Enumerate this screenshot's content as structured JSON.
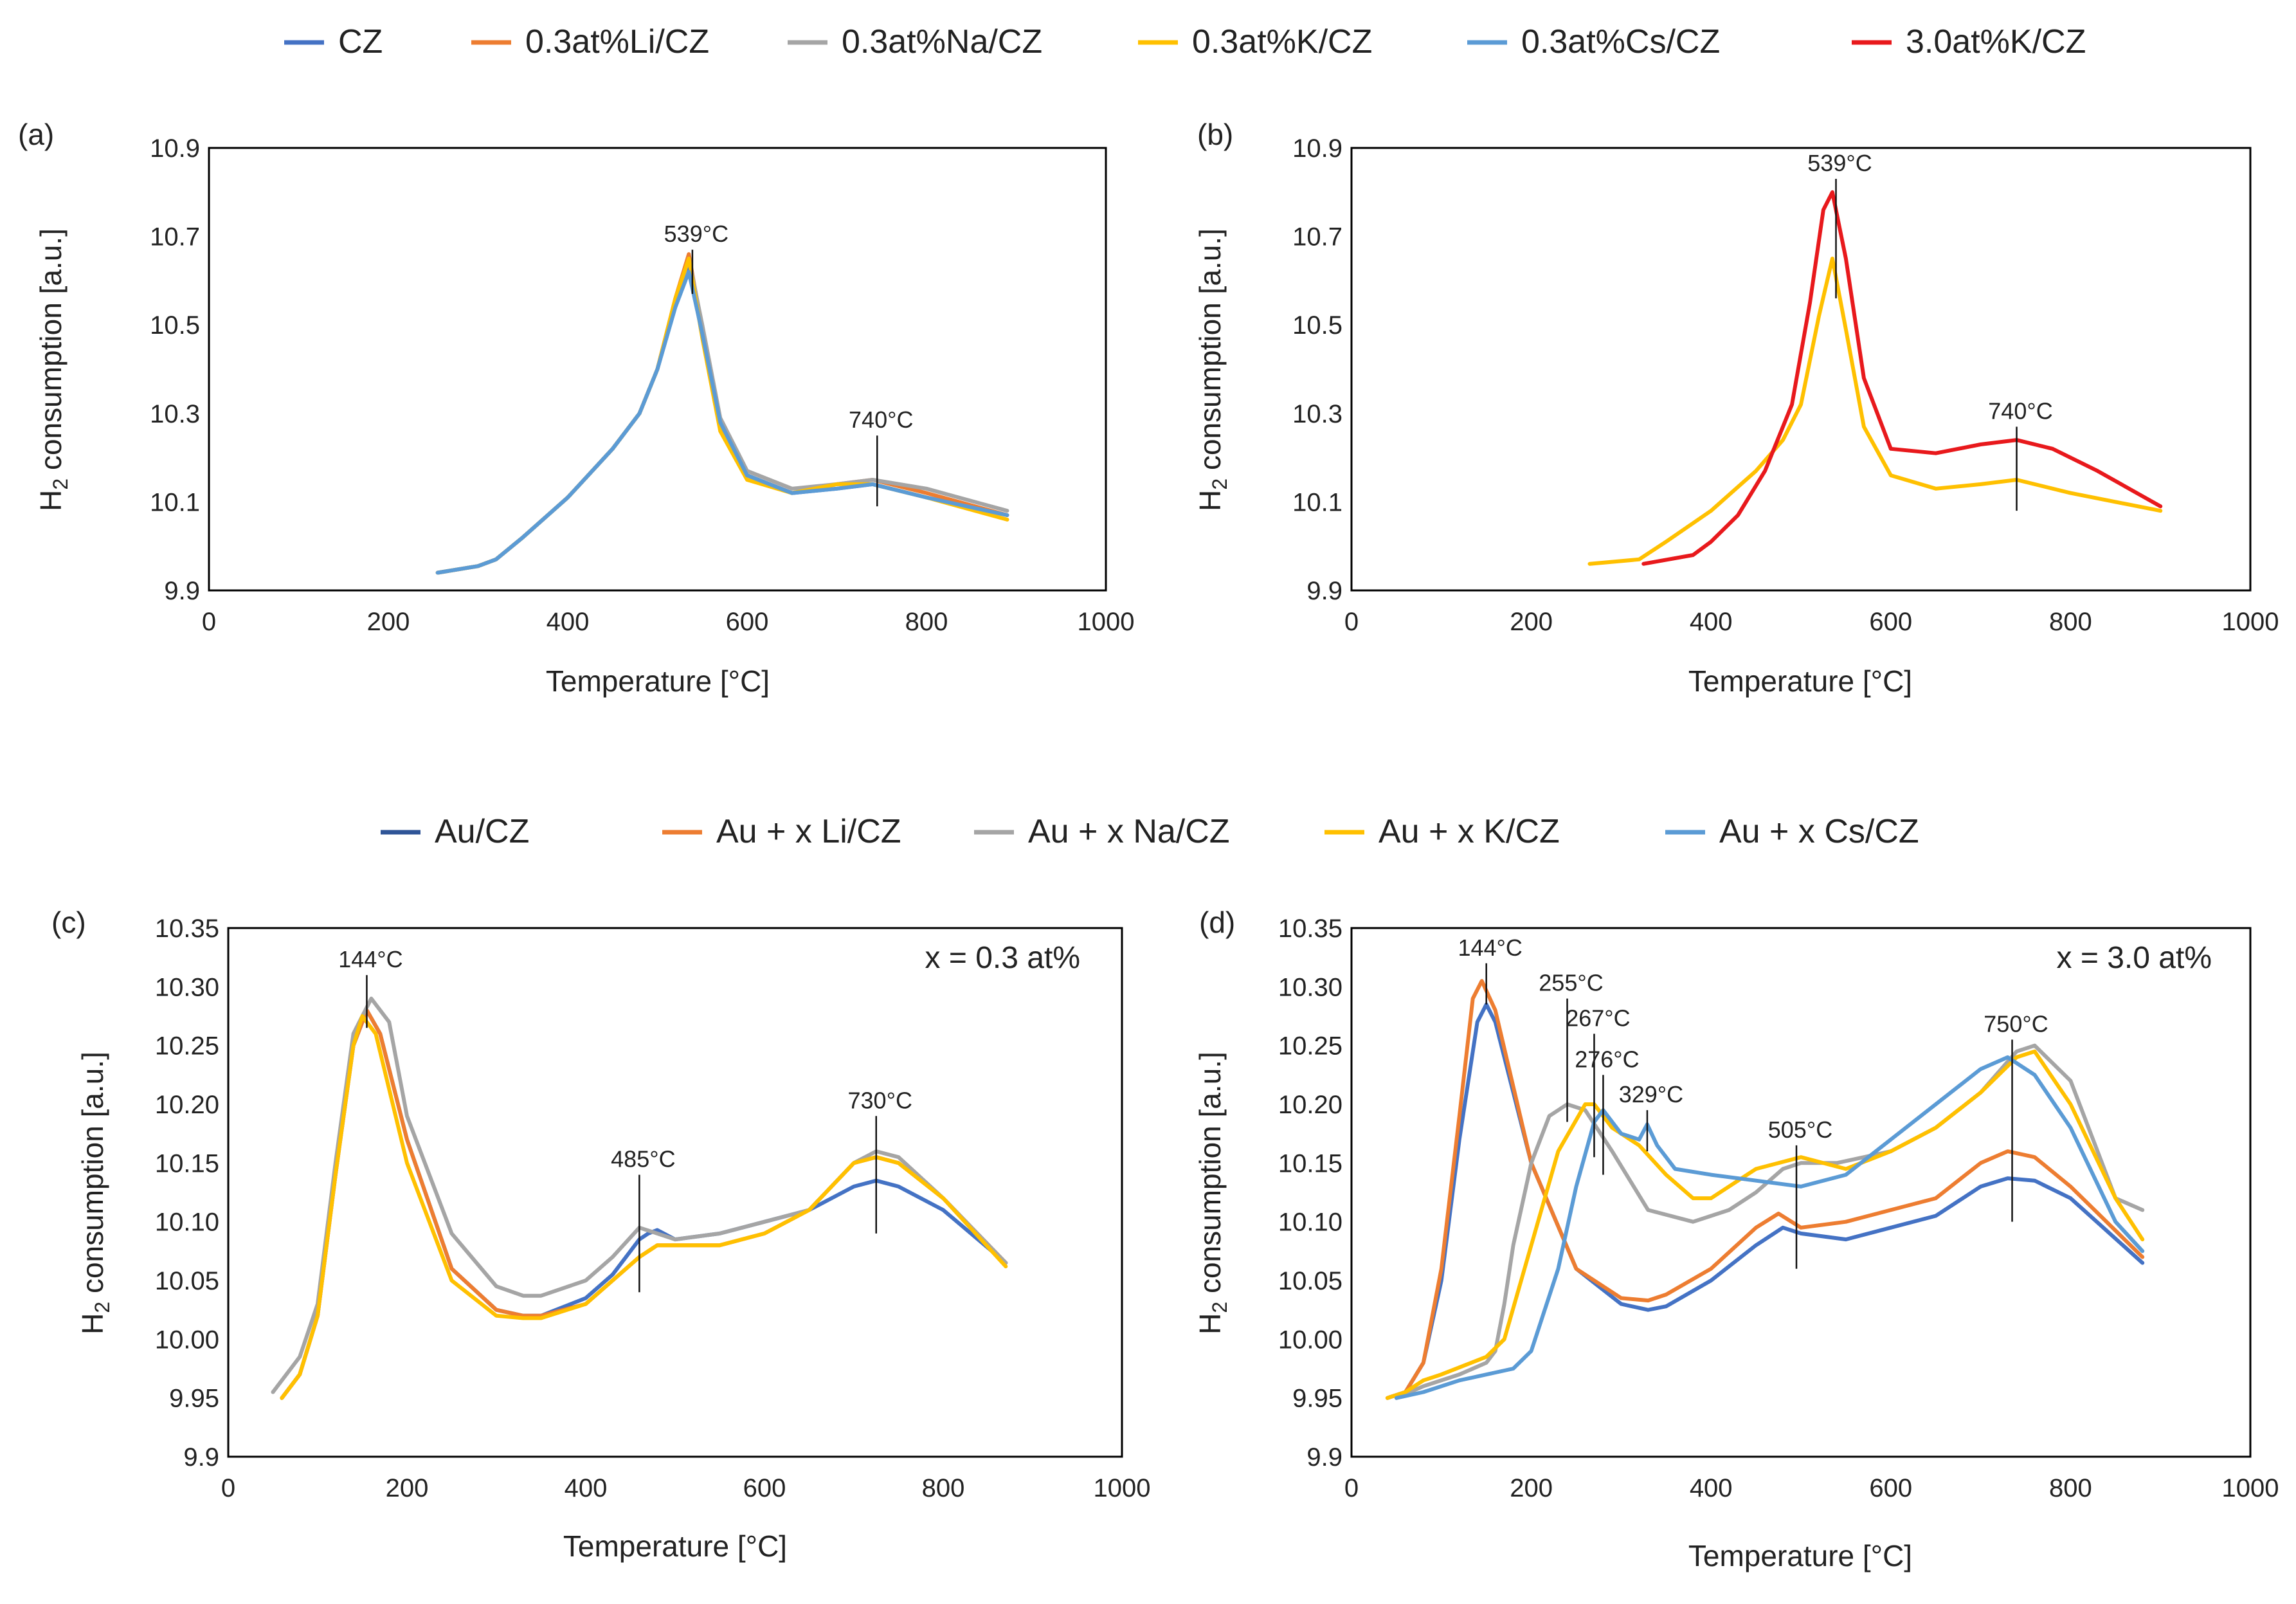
{
  "chart_data": [
    {
      "panel": "(a)",
      "type": "line",
      "xlabel": "Temperature [°C]",
      "ylabel": "H2 consumption [a.u.]",
      "xlim": [
        0,
        1000
      ],
      "ylim": [
        9.9,
        10.9
      ],
      "xticks": [
        0,
        200,
        400,
        600,
        800,
        1000
      ],
      "yticks": [
        "9.9",
        "10.1",
        "10.3",
        "10.5",
        "10.7",
        "10.9"
      ],
      "annotations": [
        {
          "text": "539°C",
          "x": 539,
          "y0": 10.57,
          "y1": 10.67
        },
        {
          "text": "740°C",
          "x": 745,
          "y0": 10.09,
          "y1": 10.25
        }
      ],
      "series": [
        {
          "name": "CZ",
          "color": "#4472c4",
          "x": [
            255,
            300,
            320,
            350,
            400,
            450,
            480,
            500,
            520,
            535,
            550,
            570,
            600,
            650,
            700,
            740,
            800,
            890
          ],
          "y": [
            9.94,
            9.955,
            9.97,
            10.02,
            10.11,
            10.22,
            10.3,
            10.4,
            10.55,
            10.64,
            10.48,
            10.27,
            10.16,
            10.12,
            10.13,
            10.14,
            10.11,
            10.07
          ]
        },
        {
          "name": "0.3at%Li/CZ",
          "color": "#ed7d31",
          "x": [
            255,
            300,
            320,
            350,
            400,
            450,
            480,
            500,
            520,
            535,
            550,
            570,
            600,
            650,
            700,
            740,
            800,
            890
          ],
          "y": [
            9.94,
            9.955,
            9.97,
            10.02,
            10.11,
            10.22,
            10.3,
            10.4,
            10.56,
            10.66,
            10.49,
            10.28,
            10.16,
            10.12,
            10.14,
            10.15,
            10.12,
            10.07
          ]
        },
        {
          "name": "0.3at%Na/CZ",
          "color": "#a5a5a5",
          "x": [
            255,
            300,
            320,
            350,
            400,
            450,
            480,
            500,
            520,
            535,
            550,
            570,
            600,
            650,
            700,
            740,
            800,
            890
          ],
          "y": [
            9.94,
            9.955,
            9.97,
            10.02,
            10.11,
            10.22,
            10.3,
            10.4,
            10.55,
            10.65,
            10.5,
            10.29,
            10.17,
            10.13,
            10.14,
            10.15,
            10.13,
            10.08
          ]
        },
        {
          "name": "0.3at%K/CZ",
          "color": "#ffc000",
          "x": [
            255,
            300,
            320,
            350,
            400,
            450,
            480,
            500,
            520,
            535,
            550,
            570,
            600,
            650,
            700,
            740,
            800,
            890
          ],
          "y": [
            9.94,
            9.955,
            9.97,
            10.02,
            10.11,
            10.22,
            10.3,
            10.4,
            10.56,
            10.65,
            10.47,
            10.26,
            10.15,
            10.12,
            10.14,
            10.14,
            10.11,
            10.06
          ]
        },
        {
          "name": "0.3at%Cs/CZ",
          "color": "#5b9bd5",
          "x": [
            255,
            300,
            320,
            350,
            400,
            450,
            480,
            500,
            520,
            535,
            550,
            570,
            600,
            650,
            700,
            740,
            800,
            890
          ],
          "y": [
            9.94,
            9.955,
            9.97,
            10.02,
            10.11,
            10.22,
            10.3,
            10.4,
            10.54,
            10.62,
            10.48,
            10.28,
            10.16,
            10.12,
            10.13,
            10.14,
            10.11,
            10.07
          ]
        }
      ]
    },
    {
      "panel": "(b)",
      "type": "line",
      "xlabel": "Temperature [°C]",
      "ylabel": "H2 consumption [a.u.]",
      "xlim": [
        0,
        1000
      ],
      "ylim": [
        9.9,
        10.9
      ],
      "xticks": [
        0,
        200,
        400,
        600,
        800,
        1000
      ],
      "yticks": [
        "9.9",
        "10.1",
        "10.3",
        "10.5",
        "10.7",
        "10.9"
      ],
      "annotations": [
        {
          "text": "539°C",
          "x": 539,
          "y0": 10.56,
          "y1": 10.83
        },
        {
          "text": "740°C",
          "x": 740,
          "y0": 10.08,
          "y1": 10.27
        }
      ],
      "series": [
        {
          "name": "0.3at%K/CZ",
          "color": "#ffc000",
          "x": [
            265,
            320,
            350,
            400,
            450,
            480,
            500,
            520,
            535,
            550,
            570,
            600,
            650,
            700,
            740,
            800,
            900
          ],
          "y": [
            9.96,
            9.97,
            10.01,
            10.08,
            10.17,
            10.24,
            10.32,
            10.52,
            10.65,
            10.49,
            10.27,
            10.16,
            10.13,
            10.14,
            10.15,
            10.12,
            10.08
          ]
        },
        {
          "name": "3.0at%K/CZ",
          "color": "#e8191c",
          "x": [
            325,
            380,
            400,
            430,
            460,
            490,
            510,
            525,
            535,
            550,
            570,
            600,
            650,
            700,
            740,
            780,
            830,
            900
          ],
          "y": [
            9.96,
            9.98,
            10.01,
            10.07,
            10.17,
            10.32,
            10.55,
            10.76,
            10.8,
            10.65,
            10.38,
            10.22,
            10.21,
            10.23,
            10.24,
            10.22,
            10.17,
            10.09
          ]
        }
      ]
    },
    {
      "panel": "(c)",
      "type": "line",
      "xlabel": "Temperature [°C]",
      "ylabel": "H2 consumption [a.u.]",
      "note": "x = 0.3 at%",
      "xlim": [
        0,
        1000
      ],
      "ylim": [
        9.9,
        10.35
      ],
      "xticks": [
        0,
        200,
        400,
        600,
        800,
        1000
      ],
      "yticks": [
        "9.9",
        "9.95",
        "10.00",
        "10.05",
        "10.10",
        "10.15",
        "10.20",
        "10.25",
        "10.30",
        "10.35"
      ],
      "annotations": [
        {
          "text": "144°C",
          "x": 155,
          "y0": 10.265,
          "y1": 10.31
        },
        {
          "text": "485°C",
          "x": 460,
          "y0": 10.04,
          "y1": 10.14
        },
        {
          "text": "730°C",
          "x": 725,
          "y0": 10.09,
          "y1": 10.19
        }
      ],
      "series": [
        {
          "name": "Au/CZ",
          "color": "#4472c4",
          "x": [
            60,
            80,
            100,
            120,
            140,
            155,
            170,
            200,
            250,
            300,
            330,
            350,
            400,
            430,
            460,
            470,
            480,
            500,
            550,
            600,
            650,
            700,
            725,
            750,
            800,
            870
          ],
          "y": [
            9.95,
            9.97,
            10.02,
            10.14,
            10.25,
            10.28,
            10.26,
            10.17,
            10.06,
            10.025,
            10.02,
            10.02,
            10.035,
            10.055,
            10.085,
            10.09,
            10.093,
            10.085,
            10.09,
            10.1,
            10.11,
            10.13,
            10.135,
            10.13,
            10.11,
            10.065
          ]
        },
        {
          "name": "Au + x Li/CZ",
          "color": "#ed7d31",
          "x": [
            60,
            80,
            100,
            120,
            140,
            155,
            170,
            200,
            250,
            300,
            330,
            350,
            400,
            430,
            460,
            480,
            500,
            550,
            600,
            650,
            700,
            725,
            750,
            800,
            870
          ],
          "y": [
            9.95,
            9.97,
            10.02,
            10.14,
            10.25,
            10.28,
            10.26,
            10.17,
            10.06,
            10.025,
            10.02,
            10.02,
            10.03,
            10.05,
            10.07,
            10.08,
            10.08,
            10.08,
            10.09,
            10.11,
            10.15,
            10.155,
            10.15,
            10.12,
            10.065
          ]
        },
        {
          "name": "Au + x Na/CZ",
          "color": "#a5a5a5",
          "x": [
            50,
            80,
            100,
            120,
            140,
            160,
            180,
            200,
            250,
            300,
            330,
            350,
            400,
            430,
            460,
            480,
            500,
            550,
            600,
            650,
            700,
            725,
            750,
            800,
            870
          ],
          "y": [
            9.955,
            9.985,
            10.03,
            10.15,
            10.26,
            10.29,
            10.27,
            10.19,
            10.09,
            10.045,
            10.037,
            10.037,
            10.05,
            10.07,
            10.095,
            10.09,
            10.085,
            10.09,
            10.1,
            10.11,
            10.15,
            10.16,
            10.155,
            10.12,
            10.065
          ]
        },
        {
          "name": "Au + x K/CZ",
          "color": "#ffc000",
          "x": [
            60,
            80,
            100,
            120,
            140,
            150,
            165,
            200,
            250,
            300,
            330,
            350,
            400,
            430,
            460,
            480,
            500,
            550,
            600,
            650,
            700,
            725,
            750,
            800,
            870
          ],
          "y": [
            9.95,
            9.97,
            10.02,
            10.14,
            10.25,
            10.275,
            10.26,
            10.15,
            10.05,
            10.02,
            10.018,
            10.018,
            10.03,
            10.05,
            10.07,
            10.08,
            10.08,
            10.08,
            10.09,
            10.11,
            10.15,
            10.155,
            10.15,
            10.12,
            10.062
          ]
        }
      ]
    },
    {
      "panel": "(d)",
      "type": "line",
      "xlabel": "Temperature [°C]",
      "ylabel": "H2 consumption [a.u.]",
      "note": "x = 3.0 at%",
      "xlim": [
        0,
        1000
      ],
      "ylim": [
        9.9,
        10.35
      ],
      "xticks": [
        0,
        200,
        400,
        600,
        800,
        1000
      ],
      "yticks": [
        "9.9",
        "9.95",
        "10.00",
        "10.05",
        "10.10",
        "10.15",
        "10.20",
        "10.25",
        "10.30",
        "10.35"
      ],
      "annotations": [
        {
          "text": "144°C",
          "x": 150,
          "y0": 10.285,
          "y1": 10.32
        },
        {
          "text": "255°C",
          "x": 240,
          "y0": 10.185,
          "y1": 10.29
        },
        {
          "text": "267°C",
          "x": 270,
          "y0": 10.155,
          "y1": 10.26
        },
        {
          "text": "276°C",
          "x": 280,
          "y0": 10.14,
          "y1": 10.225
        },
        {
          "text": "329°C",
          "x": 329,
          "y0": 10.16,
          "y1": 10.195
        },
        {
          "text": "505°C",
          "x": 495,
          "y0": 10.06,
          "y1": 10.165
        },
        {
          "text": "750°C",
          "x": 735,
          "y0": 10.1,
          "y1": 10.255
        }
      ],
      "series": [
        {
          "name": "Au/CZ",
          "color": "#4472c4",
          "x": [
            40,
            60,
            80,
            100,
            120,
            140,
            150,
            160,
            200,
            250,
            300,
            330,
            350,
            400,
            450,
            480,
            500,
            550,
            600,
            650,
            700,
            730,
            760,
            800,
            880
          ],
          "y": [
            9.95,
            9.955,
            9.98,
            10.05,
            10.17,
            10.27,
            10.285,
            10.27,
            10.15,
            10.06,
            10.03,
            10.025,
            10.028,
            10.05,
            10.08,
            10.095,
            10.09,
            10.085,
            10.095,
            10.105,
            10.13,
            10.137,
            10.135,
            10.12,
            10.065
          ]
        },
        {
          "name": "Au + x Li/CZ",
          "color": "#ed7d31",
          "x": [
            40,
            60,
            80,
            100,
            120,
            135,
            145,
            160,
            200,
            250,
            300,
            330,
            350,
            400,
            450,
            475,
            500,
            550,
            600,
            650,
            700,
            730,
            760,
            800,
            880
          ],
          "y": [
            9.95,
            9.955,
            9.98,
            10.06,
            10.19,
            10.29,
            10.305,
            10.28,
            10.15,
            10.06,
            10.035,
            10.033,
            10.038,
            10.06,
            10.095,
            10.107,
            10.095,
            10.1,
            10.11,
            10.12,
            10.15,
            10.16,
            10.155,
            10.13,
            10.07
          ]
        },
        {
          "name": "Au + x Na/CZ",
          "color": "#a5a5a5",
          "x": [
            50,
            80,
            120,
            150,
            160,
            170,
            180,
            200,
            220,
            240,
            260,
            290,
            330,
            380,
            420,
            450,
            480,
            500,
            540,
            600,
            650,
            700,
            740,
            760,
            800,
            850,
            880
          ],
          "y": [
            9.95,
            9.96,
            9.97,
            9.98,
            9.99,
            10.03,
            10.08,
            10.15,
            10.19,
            10.2,
            10.195,
            10.16,
            10.11,
            10.1,
            10.11,
            10.125,
            10.145,
            10.15,
            10.15,
            10.16,
            10.18,
            10.21,
            10.245,
            10.25,
            10.22,
            10.12,
            10.11
          ]
        },
        {
          "name": "Au + x K/CZ",
          "color": "#ffc000",
          "x": [
            40,
            60,
            80,
            100,
            150,
            170,
            200,
            230,
            260,
            270,
            290,
            320,
            350,
            380,
            400,
            450,
            500,
            550,
            600,
            650,
            700,
            740,
            760,
            800,
            850,
            880
          ],
          "y": [
            9.95,
            9.955,
            9.965,
            9.97,
            9.985,
            10.0,
            10.08,
            10.16,
            10.2,
            10.2,
            10.18,
            10.165,
            10.14,
            10.12,
            10.12,
            10.145,
            10.155,
            10.145,
            10.16,
            10.18,
            10.21,
            10.24,
            10.245,
            10.2,
            10.12,
            10.085
          ]
        },
        {
          "name": "Au + x Cs/CZ",
          "color": "#5b9bd5",
          "x": [
            50,
            80,
            120,
            180,
            200,
            230,
            250,
            270,
            280,
            300,
            320,
            329,
            340,
            360,
            400,
            450,
            500,
            550,
            600,
            650,
            700,
            730,
            760,
            800,
            850,
            880
          ],
          "y": [
            9.95,
            9.955,
            9.965,
            9.975,
            9.99,
            10.06,
            10.13,
            10.185,
            10.195,
            10.175,
            10.17,
            10.183,
            10.165,
            10.145,
            10.14,
            10.135,
            10.13,
            10.14,
            10.17,
            10.2,
            10.23,
            10.24,
            10.225,
            10.18,
            10.1,
            10.075
          ]
        }
      ]
    }
  ],
  "legend_top": [
    {
      "label": "CZ",
      "color": "#4472c4"
    },
    {
      "label": "0.3at%Li/CZ",
      "color": "#ed7d31"
    },
    {
      "label": "0.3at%Na/CZ",
      "color": "#a5a5a5"
    },
    {
      "label": "0.3at%K/CZ",
      "color": "#ffc000"
    },
    {
      "label": "0.3at%Cs/CZ",
      "color": "#5b9bd5"
    },
    {
      "label": "3.0at%K/CZ",
      "color": "#e8191c"
    }
  ],
  "legend_bottom": [
    {
      "label": "Au/CZ",
      "color": "#2f5597"
    },
    {
      "label": "Au + x Li/CZ",
      "color": "#ed7d31"
    },
    {
      "label": "Au + x Na/CZ",
      "color": "#a5a5a5"
    },
    {
      "label": "Au + x K/CZ",
      "color": "#ffc000"
    },
    {
      "label": "Au + x Cs/CZ",
      "color": "#5b9bd5"
    }
  ]
}
